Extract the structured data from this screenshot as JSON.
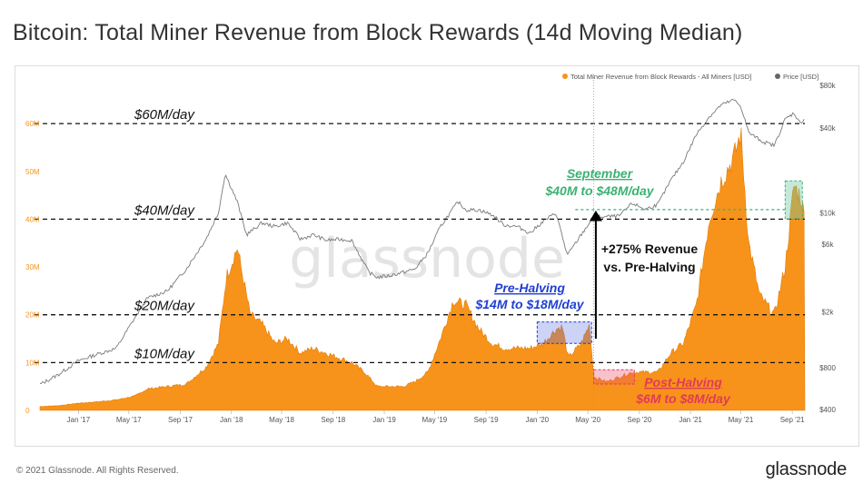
{
  "title": "Bitcoin: Total Miner Revenue from Block Rewards (14d Moving Median)",
  "footer": {
    "copyright": "© 2021 Glassnode. All Rights Reserved.",
    "brand": "glassnode"
  },
  "watermark": "glassnode",
  "colors": {
    "revenue": "#f7931a",
    "price": "#7a7a7a",
    "green": "#3bb273",
    "blue": "#1f3fd1",
    "red": "#e03a5a",
    "axis": "#888888"
  },
  "chart_data": {
    "type": "area",
    "legend": [
      {
        "label": "Total Miner Revenue from Block Rewards - All Miners [USD]",
        "color": "#f7931a"
      },
      {
        "label": "Price [USD]",
        "color": "#666666"
      }
    ],
    "x_ticks": [
      "Jan '17",
      "May '17",
      "Sep '17",
      "Jan '18",
      "May '18",
      "Sep '18",
      "Jan '19",
      "May '19",
      "Sep '19",
      "Jan '20",
      "May '20",
      "Sep '20",
      "Jan '21",
      "May '21",
      "Sep '21"
    ],
    "x_range": [
      "2016-10-01",
      "2021-10-01"
    ],
    "y_left": {
      "ticks": [
        "0",
        "10M",
        "20M",
        "30M",
        "40M",
        "50M",
        "60M"
      ],
      "values": [
        0,
        10,
        20,
        30,
        40,
        50,
        60
      ],
      "range": [
        0,
        68
      ],
      "unit": "M USD/day"
    },
    "y_right": {
      "scale": "log",
      "ticks": [
        "$400",
        "$800",
        "$2k",
        "$6k",
        "$10k",
        "$40k",
        "$80k"
      ],
      "values": [
        400,
        800,
        2000,
        6000,
        10000,
        40000,
        80000
      ],
      "range": [
        400,
        80000
      ]
    },
    "revenue_series": {
      "name": "Total Miner Revenue from Block Rewards - All Miners [USD]",
      "dates": [
        "2016-10-01",
        "2016-11-15",
        "2017-01-01",
        "2017-02-15",
        "2017-04-01",
        "2017-05-15",
        "2017-06-15",
        "2017-08-01",
        "2017-09-15",
        "2017-11-01",
        "2017-12-01",
        "2017-12-20",
        "2018-01-15",
        "2018-02-15",
        "2018-03-15",
        "2018-04-15",
        "2018-05-15",
        "2018-06-15",
        "2018-07-15",
        "2018-08-15",
        "2018-09-15",
        "2018-10-15",
        "2018-11-15",
        "2018-12-15",
        "2019-01-15",
        "2019-02-15",
        "2019-03-15",
        "2019-04-15",
        "2019-05-15",
        "2019-06-15",
        "2019-07-15",
        "2019-08-15",
        "2019-09-15",
        "2019-10-15",
        "2019-11-15",
        "2019-12-15",
        "2020-01-15",
        "2020-02-15",
        "2020-03-01",
        "2020-03-15",
        "2020-04-15",
        "2020-05-05",
        "2020-05-15",
        "2020-06-15",
        "2020-07-15",
        "2020-08-15",
        "2020-09-15",
        "2020-10-15",
        "2020-11-15",
        "2020-12-15",
        "2021-01-15",
        "2021-02-15",
        "2021-03-15",
        "2021-04-15",
        "2021-05-01",
        "2021-05-20",
        "2021-06-15",
        "2021-07-20",
        "2021-08-15",
        "2021-09-05",
        "2021-09-20",
        "2021-10-01"
      ],
      "values": [
        0.8,
        1.0,
        1.5,
        1.8,
        2.2,
        3.0,
        4.5,
        5.0,
        5.5,
        9.0,
        14.0,
        28.0,
        34.0,
        20.0,
        18.0,
        14.0,
        15.0,
        12.0,
        13.0,
        12.0,
        11.0,
        10.0,
        8.0,
        5.0,
        5.0,
        5.0,
        6.0,
        8.0,
        15.0,
        23.0,
        22.0,
        17.0,
        14.0,
        13.0,
        13.0,
        13.0,
        14.0,
        17.0,
        17.5,
        11.0,
        14.0,
        18.0,
        7.0,
        6.0,
        7.0,
        8.0,
        8.0,
        8.0,
        12.0,
        14.0,
        22.0,
        40.0,
        48.0,
        53.0,
        58.0,
        35.0,
        24.0,
        20.0,
        30.0,
        47.0,
        45.0,
        40.0
      ]
    },
    "price_series": {
      "name": "Price [USD]",
      "dates": [
        "2016-10-01",
        "2016-11-15",
        "2017-01-01",
        "2017-02-15",
        "2017-04-01",
        "2017-05-15",
        "2017-06-15",
        "2017-08-01",
        "2017-09-15",
        "2017-11-01",
        "2017-12-01",
        "2017-12-17",
        "2018-01-15",
        "2018-02-06",
        "2018-03-15",
        "2018-04-15",
        "2018-05-15",
        "2018-06-15",
        "2018-07-15",
        "2018-08-15",
        "2018-09-15",
        "2018-10-15",
        "2018-11-25",
        "2018-12-15",
        "2019-01-15",
        "2019-02-15",
        "2019-03-15",
        "2019-04-15",
        "2019-05-15",
        "2019-06-26",
        "2019-07-15",
        "2019-08-15",
        "2019-09-15",
        "2019-10-15",
        "2019-11-15",
        "2019-12-15",
        "2020-01-15",
        "2020-02-15",
        "2020-03-13",
        "2020-04-15",
        "2020-05-15",
        "2020-06-15",
        "2020-07-15",
        "2020-08-15",
        "2020-09-15",
        "2020-10-15",
        "2020-11-15",
        "2020-12-15",
        "2021-01-15",
        "2021-02-15",
        "2021-03-15",
        "2021-04-14",
        "2021-05-01",
        "2021-05-20",
        "2021-06-22",
        "2021-07-20",
        "2021-08-15",
        "2021-09-05",
        "2021-09-20",
        "2021-10-01"
      ],
      "values": [
        610,
        720,
        900,
        1000,
        1100,
        1800,
        2500,
        2800,
        4000,
        6500,
        10000,
        19000,
        12000,
        7000,
        8500,
        8000,
        8500,
        6500,
        7000,
        6400,
        6500,
        6400,
        3800,
        3500,
        3600,
        3800,
        4000,
        5200,
        8000,
        12000,
        10500,
        10500,
        9700,
        8200,
        8000,
        7200,
        8700,
        10000,
        5000,
        7000,
        9400,
        9400,
        9500,
        11700,
        10600,
        11500,
        17000,
        23000,
        36000,
        48000,
        58000,
        63000,
        57000,
        37000,
        32000,
        30000,
        46000,
        51000,
        43000,
        47000
      ]
    },
    "reference_lines": [
      {
        "label": "$60M/day",
        "value": 60
      },
      {
        "label": "$40M/day",
        "value": 40
      },
      {
        "label": "$20M/day",
        "value": 20
      },
      {
        "label": "$10M/day",
        "value": 10
      }
    ],
    "annotations": {
      "september": {
        "title": "September",
        "subtitle": "$40M to $48M/day"
      },
      "pre_halving": {
        "title": "Pre-Halving",
        "subtitle": "$14M to $18M/day"
      },
      "post_halving": {
        "title": "Post-Halving",
        "subtitle": "$6M to $8M/day"
      },
      "increase": {
        "line1": "+275% Revenue",
        "line2": "vs. Pre-Halving"
      }
    }
  }
}
